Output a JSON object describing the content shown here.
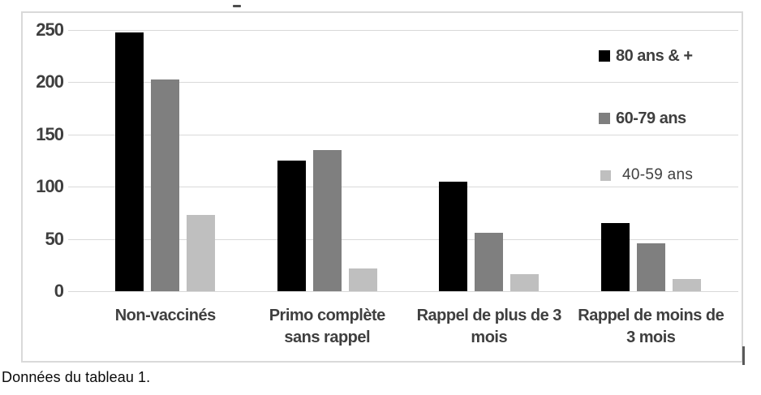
{
  "caption": "Données du tableau 1.",
  "colors": {
    "series_black": "#000000",
    "series_gray": "#7f7f7f",
    "series_lightgray": "#bfbfbf",
    "gridline": "#d9d9d9",
    "frame_border": "#d9d9d9",
    "axis_text": "#3f3f3f"
  },
  "chart_data": {
    "type": "bar",
    "title": "",
    "xlabel": "",
    "ylabel": "",
    "categories": [
      "Non-vaccinés",
      "Primo complète sans rappel",
      "Rappel de plus de 3 mois",
      "Rappel de moins de 3 mois"
    ],
    "series": [
      {
        "name": "80 ans & +",
        "color": "#000000",
        "values": [
          248,
          125,
          105,
          65
        ]
      },
      {
        "name": "60-79 ans",
        "color": "#7f7f7f",
        "values": [
          203,
          135,
          56,
          46
        ]
      },
      {
        "name": "40-59 ans",
        "color": "#bfbfbf",
        "values": [
          73,
          22,
          16,
          12
        ]
      }
    ],
    "ylim": [
      0,
      250
    ],
    "yticks": [
      250,
      200,
      150,
      100,
      50,
      0
    ],
    "grid": true,
    "legend_position": "top-right-overlay"
  }
}
